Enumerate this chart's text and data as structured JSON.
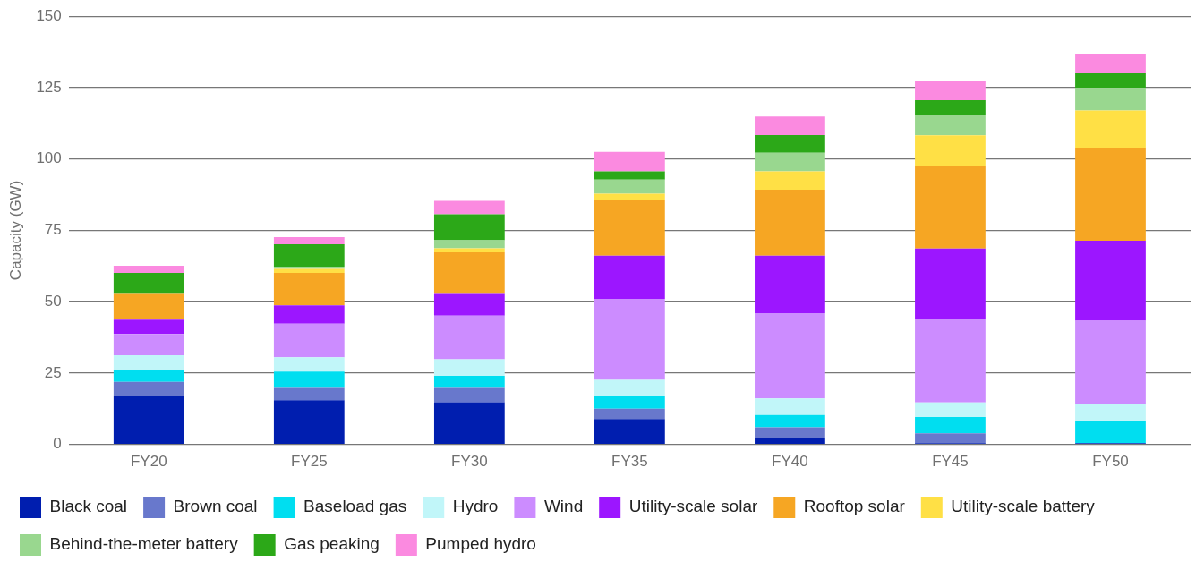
{
  "chart_data": {
    "type": "bar",
    "stacked": true,
    "ylabel": "Capacity (GW)",
    "categories": [
      "FY20",
      "FY25",
      "FY30",
      "FY35",
      "FY40",
      "FY45",
      "FY50"
    ],
    "ylim": [
      0,
      150
    ],
    "yticks": [
      0,
      25,
      50,
      75,
      100,
      125,
      150
    ],
    "grid": "y",
    "legend": "bottom left",
    "series": [
      {
        "name": "Black coal",
        "color": "#001eaf",
        "values": [
          16.9,
          15.5,
          14.8,
          8.9,
          2.4,
          0.4,
          0.4
        ]
      },
      {
        "name": "Brown coal",
        "color": "#6878cc",
        "values": [
          5.0,
          4.3,
          5.0,
          3.6,
          3.6,
          3.5,
          0
        ]
      },
      {
        "name": "Baseload gas",
        "color": "#00def0",
        "values": [
          4.3,
          5.7,
          4.2,
          4.3,
          4.3,
          5.7,
          7.8
        ]
      },
      {
        "name": "Hydro",
        "color": "#c1f6f9",
        "values": [
          5.0,
          5.0,
          5.8,
          5.8,
          5.8,
          5.1,
          5.8
        ]
      },
      {
        "name": "Wind",
        "color": "#cc8cff",
        "values": [
          7.5,
          11.8,
          15.3,
          28.4,
          29.9,
          29.3,
          29.3
        ]
      },
      {
        "name": "Utility-scale solar",
        "color": "#9c16ff",
        "values": [
          5.0,
          6.4,
          7.9,
          15.1,
          20.1,
          24.6,
          28.1
        ]
      },
      {
        "name": "Rooftop solar",
        "color": "#f6a623",
        "values": [
          9.3,
          11.4,
          14.3,
          19.5,
          23.1,
          28.9,
          32.6
        ]
      },
      {
        "name": "Utility-scale battery",
        "color": "#ffe045",
        "values": [
          0,
          1.4,
          1.4,
          2.2,
          6.5,
          10.8,
          13.0
        ]
      },
      {
        "name": "Behind-the-meter battery",
        "color": "#99d78f",
        "values": [
          0,
          0.8,
          2.8,
          5.0,
          6.5,
          7.2,
          7.9
        ]
      },
      {
        "name": "Gas peaking",
        "color": "#2ca818",
        "values": [
          7.1,
          7.8,
          9.1,
          2.9,
          6.2,
          5.1,
          5.1
        ]
      },
      {
        "name": "Pumped hydro",
        "color": "#fb8ae0",
        "values": [
          2.5,
          2.5,
          4.7,
          6.8,
          6.5,
          6.9,
          6.9
        ]
      }
    ]
  }
}
